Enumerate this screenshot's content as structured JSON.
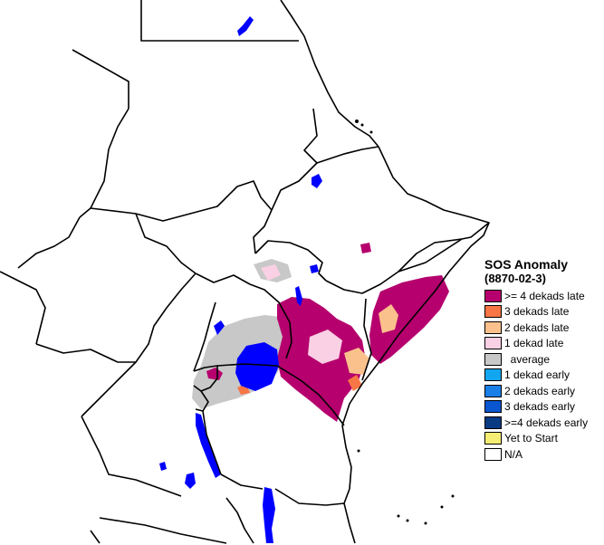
{
  "legend": {
    "title": "SOS Anomaly",
    "subtitle": "(8870-02-3)",
    "items": [
      {
        "label": ">= 4 dekads late",
        "color": "#B5006E"
      },
      {
        "label": "3 dekads late",
        "color": "#F87545"
      },
      {
        "label": "2 dekads late",
        "color": "#FBC18C"
      },
      {
        "label": "1 dekad late",
        "color": "#FAD0E4"
      },
      {
        "label": "  average",
        "color": "#C8C8C8"
      },
      {
        "label": "1 dekad early",
        "color": "#12A6F0"
      },
      {
        "label": "2 dekads early",
        "color": "#1A80E8"
      },
      {
        "label": "3 dekads early",
        "color": "#0A55D0"
      },
      {
        "label": ">=4 dekads early",
        "color": "#0A3A82"
      },
      {
        "label": "Yet to Start",
        "color": "#F6EE74"
      },
      {
        "label": "N/A",
        "color": "#FFFFFF"
      }
    ]
  },
  "colors": {
    "water": "#0000FF",
    "border": "#000000"
  }
}
